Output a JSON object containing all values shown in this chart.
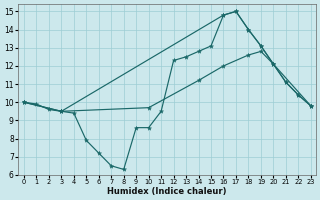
{
  "xlabel": "Humidex (Indice chaleur)",
  "bg_color": "#cce8ec",
  "grid_color": "#9ecdd4",
  "line_color": "#1a6868",
  "xlim_min": -0.5,
  "xlim_max": 23.4,
  "ylim_min": 6,
  "ylim_max": 15.4,
  "xticks": [
    0,
    1,
    2,
    3,
    4,
    5,
    6,
    7,
    8,
    9,
    10,
    11,
    12,
    13,
    14,
    15,
    16,
    17,
    18,
    19,
    20,
    21,
    22,
    23
  ],
  "yticks": [
    6,
    7,
    8,
    9,
    10,
    11,
    12,
    13,
    14,
    15
  ],
  "series": [
    {
      "x": [
        0,
        1,
        2,
        3,
        4,
        5,
        6,
        7,
        8,
        9,
        10,
        11,
        12,
        13,
        14,
        15,
        16,
        17,
        18,
        19,
        20,
        21,
        22,
        23
      ],
      "y": [
        10.0,
        9.9,
        9.6,
        9.5,
        9.4,
        7.9,
        7.2,
        6.5,
        6.3,
        8.6,
        8.6,
        9.5,
        12.3,
        12.5,
        12.8,
        13.1,
        14.8,
        15.0,
        14.0,
        13.1,
        12.1,
        11.1,
        10.4,
        9.8
      ]
    },
    {
      "x": [
        0,
        3,
        16,
        17,
        18,
        19,
        20,
        21,
        22,
        23
      ],
      "y": [
        10.0,
        9.5,
        14.8,
        15.0,
        14.0,
        13.1,
        12.1,
        11.1,
        10.4,
        9.8
      ]
    },
    {
      "x": [
        0,
        3,
        10,
        14,
        16,
        18,
        19,
        20,
        23
      ],
      "y": [
        10.0,
        9.5,
        9.7,
        11.2,
        12.0,
        12.6,
        12.8,
        12.1,
        9.8
      ]
    }
  ]
}
